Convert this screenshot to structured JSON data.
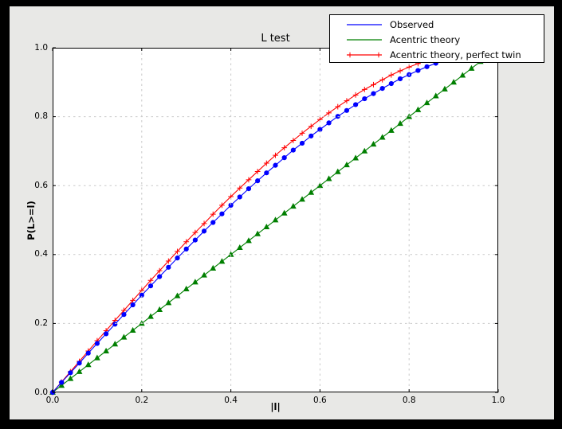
{
  "window": {
    "frame_color": "#000000",
    "figure_background": "#e8e8e6",
    "plot_background": "#ffffff",
    "grid_color": "#c9c9c9"
  },
  "chart_data": {
    "type": "line",
    "title": "L test",
    "xlabel": "|l|",
    "ylabel": "P(L>=l)",
    "xlim": [
      0.0,
      1.0
    ],
    "ylim": [
      0.0,
      1.0
    ],
    "grid": true,
    "grid_style": "dashed, drawn above data",
    "legend_position": "upper right, overlapping top of axes",
    "xtick_labels": [
      "0.0",
      "0.2",
      "0.4",
      "0.6",
      "0.8",
      "1.0"
    ],
    "ytick_labels": [
      "0.0",
      "0.2",
      "0.4",
      "0.6",
      "0.8",
      "1.0"
    ],
    "x": [
      0,
      0.02,
      0.04,
      0.06,
      0.08,
      0.1,
      0.12,
      0.14,
      0.16,
      0.18,
      0.2,
      0.22,
      0.24,
      0.26,
      0.28,
      0.3,
      0.32,
      0.34,
      0.36,
      0.38,
      0.4,
      0.42,
      0.44,
      0.46,
      0.48,
      0.5,
      0.52,
      0.54,
      0.56,
      0.58,
      0.6,
      0.62,
      0.64,
      0.66,
      0.68,
      0.7,
      0.72,
      0.74,
      0.76,
      0.78,
      0.8,
      0.82,
      0.84,
      0.86,
      0.88,
      0.9,
      0.92,
      0.94,
      0.96,
      0.98,
      1.0
    ],
    "series": [
      {
        "name": "Acentric theory",
        "color": "#007f00",
        "marker": "triangle-up",
        "legend_marker": "none",
        "values": [
          0,
          0.02,
          0.04,
          0.06,
          0.08,
          0.1,
          0.12,
          0.14,
          0.16,
          0.18,
          0.2,
          0.22,
          0.24,
          0.26,
          0.28,
          0.3,
          0.32,
          0.34,
          0.36,
          0.38,
          0.4,
          0.42,
          0.44,
          0.46,
          0.48,
          0.5,
          0.52,
          0.54,
          0.56,
          0.58,
          0.6,
          0.62,
          0.64,
          0.66,
          0.68,
          0.7,
          0.72,
          0.74,
          0.76,
          0.78,
          0.8,
          0.82,
          0.84,
          0.86,
          0.88,
          0.9,
          0.92,
          0.94,
          0.96,
          0.98,
          1.0
        ]
      },
      {
        "name": "Acentric theory, perfect twin",
        "color": "#ff0000",
        "marker": "plus",
        "legend_marker": "plus",
        "values": [
          0,
          0.03,
          0.06,
          0.09,
          0.12,
          0.15,
          0.179,
          0.209,
          0.238,
          0.267,
          0.296,
          0.325,
          0.353,
          0.381,
          0.409,
          0.437,
          0.464,
          0.49,
          0.517,
          0.543,
          0.568,
          0.593,
          0.617,
          0.641,
          0.665,
          0.688,
          0.71,
          0.731,
          0.752,
          0.772,
          0.792,
          0.811,
          0.829,
          0.846,
          0.863,
          0.879,
          0.893,
          0.907,
          0.921,
          0.933,
          0.944,
          0.954,
          0.964,
          0.972,
          0.979,
          0.986,
          0.991,
          0.995,
          0.998,
          0.999,
          1.0
        ]
      },
      {
        "name": "Observed",
        "color": "#0000ff",
        "marker": "circle",
        "legend_marker": "none",
        "values": [
          0,
          0.029,
          0.057,
          0.085,
          0.114,
          0.142,
          0.17,
          0.198,
          0.226,
          0.254,
          0.282,
          0.309,
          0.336,
          0.363,
          0.39,
          0.416,
          0.442,
          0.468,
          0.493,
          0.518,
          0.543,
          0.567,
          0.591,
          0.614,
          0.637,
          0.659,
          0.681,
          0.703,
          0.723,
          0.744,
          0.763,
          0.782,
          0.801,
          0.818,
          0.835,
          0.852,
          0.867,
          0.882,
          0.896,
          0.91,
          0.922,
          0.934,
          0.945,
          0.955,
          0.964,
          0.973,
          0.98,
          0.987,
          0.992,
          0.996,
          1.0
        ]
      }
    ],
    "legend_order": [
      "Observed",
      "Acentric theory",
      "Acentric theory, perfect twin"
    ]
  }
}
